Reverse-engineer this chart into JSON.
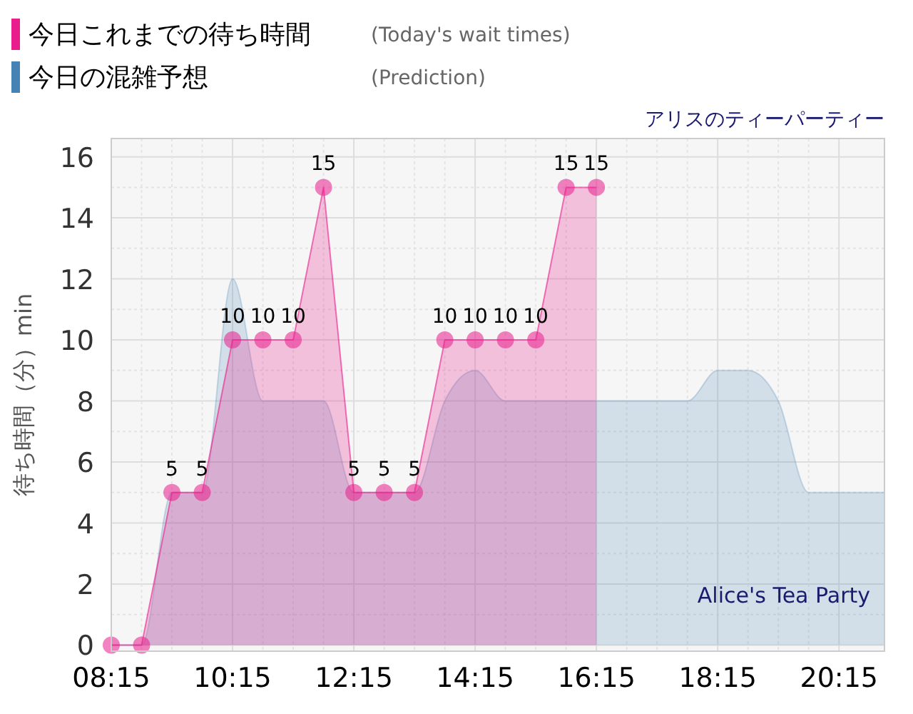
{
  "chart_data": {
    "type": "area",
    "annotations": [
      "(Today's wait times)",
      "(Prediction)",
      "アリスのティーパーティー",
      "Alice's Tea Party"
    ],
    "ylabel": "待ち時間（分）min",
    "xlim": [
      8.25,
      21.0
    ],
    "xticks": [
      {
        "value": 8.25,
        "label": "08:15"
      },
      {
        "value": 10.25,
        "label": "10:15"
      },
      {
        "value": 12.25,
        "label": "12:15"
      },
      {
        "value": 14.25,
        "label": "14:15"
      },
      {
        "value": 16.25,
        "label": "16:15"
      },
      {
        "value": 18.25,
        "label": "18:15"
      },
      {
        "value": 20.25,
        "label": "20:15"
      }
    ],
    "ylim": [
      -0.2,
      16.6
    ],
    "yticks": [
      0,
      2,
      4,
      6,
      8,
      10,
      12,
      14,
      16
    ],
    "grid": true,
    "legend": "top left",
    "series": [
      {
        "name": "今日の混雑予想",
        "color": "#4682b4",
        "marker": "none",
        "x": [
          8.25,
          8.75,
          9.25,
          9.75,
          10.25,
          10.75,
          11.25,
          11.75,
          12.25,
          12.75,
          13.25,
          13.75,
          14.25,
          14.75,
          15.25,
          15.75,
          16.25,
          16.75,
          17.25,
          17.75,
          18.25,
          18.75,
          19.25,
          19.75,
          20.25,
          20.75,
          21.0
        ],
        "values": [
          0,
          0,
          5,
          5,
          12,
          8,
          8,
          8,
          5,
          5,
          5,
          8,
          9,
          8,
          8,
          8,
          8,
          8,
          8,
          8,
          9,
          9,
          8,
          5,
          5,
          5,
          5
        ]
      },
      {
        "name": "今日これまでの待ち時間",
        "color": "#e91e8c",
        "marker": "circle",
        "x": [
          8.25,
          8.75,
          9.25,
          9.75,
          10.25,
          10.75,
          11.25,
          11.75,
          12.25,
          12.75,
          13.25,
          13.75,
          14.25,
          14.75,
          15.25,
          15.75,
          16.25
        ],
        "values": [
          0,
          0,
          5,
          5,
          10,
          10,
          10,
          15,
          5,
          5,
          5,
          10,
          10,
          10,
          10,
          15,
          15
        ],
        "value_labels": [
          null,
          null,
          "5",
          "5",
          "10",
          "10",
          "10",
          "15",
          "5",
          "5",
          "5",
          "10",
          "10",
          "10",
          "10",
          "15",
          "15"
        ]
      }
    ]
  }
}
